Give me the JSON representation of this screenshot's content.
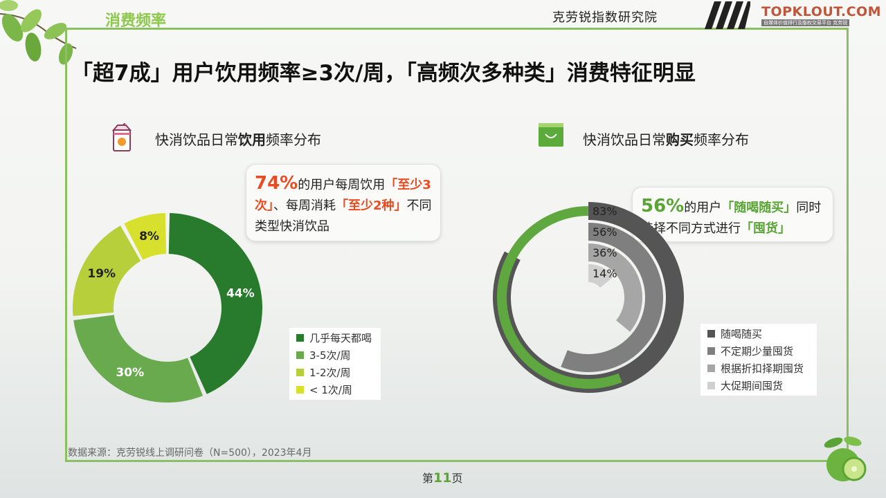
{
  "header": {
    "section_tag": "消费频率",
    "org_name": "克劳锐指数研究院",
    "brand": "TOPKLOUT.COM",
    "brand_sub": "自媒体价值排行及版权交易平台 克劳锐"
  },
  "title": "「超7成」用户饮用频率≥3次/周，「高频次多种类」消费特征明显",
  "left_panel": {
    "subtitle_pre": "快消饮品日常",
    "subtitle_bold": "饮用",
    "subtitle_post": "频率分布",
    "icon": "juice-box-icon",
    "callout": {
      "pct": "74%",
      "t1": "的用户每周饮用",
      "h1": "「至少3次」",
      "t2": "、每周消耗",
      "h2": "「至少2种」",
      "t3": "不同类型快消饮品"
    }
  },
  "right_panel": {
    "subtitle_pre": "快消饮品日常",
    "subtitle_bold": "购买",
    "subtitle_post": "频率分布",
    "icon": "shopping-bag-icon",
    "callout": {
      "pct": "56%",
      "t1": "的用户",
      "h1": "「随喝随买」",
      "t2": "同时选择不同方式进行",
      "h2": "「囤货」"
    }
  },
  "chart_data": [
    {
      "type": "pie",
      "donut": true,
      "series": [
        {
          "name": "几乎每天都喝",
          "value": 44,
          "label": "44%",
          "color": "#287a2c"
        },
        {
          "name": "3-5次/周",
          "value": 30,
          "label": "30%",
          "color": "#6aaa4f"
        },
        {
          "name": "1-2次/周",
          "value": 19,
          "label": "19%",
          "color": "#b6cf3a"
        },
        {
          "name": "< 1次/周",
          "value": 8,
          "label": "8%",
          "color": "#d8e02e"
        }
      ],
      "legend_position": "bottom-right"
    },
    {
      "type": "radial-bar",
      "max": 100,
      "series": [
        {
          "name": "随喝随买",
          "value": 83,
          "label": "83%",
          "color": "#555555"
        },
        {
          "name": "不定期少量囤货",
          "value": 56,
          "label": "56%",
          "color": "#7f7f7f"
        },
        {
          "name": "根据折扣择期囤货",
          "value": 36,
          "label": "36%",
          "color": "#a6a6a6"
        },
        {
          "name": "大促期间囤货",
          "value": 14,
          "label": "14%",
          "color": "#d0d0d0"
        }
      ],
      "overlay": {
        "value": 56,
        "color": "#5ea83f"
      },
      "legend_position": "bottom-right"
    }
  ],
  "footer": {
    "source": "数据来源：克劳锐线上调研问卷（N=500），2023年4月",
    "page_pre": "第",
    "page_num": "11",
    "page_post": "页"
  }
}
